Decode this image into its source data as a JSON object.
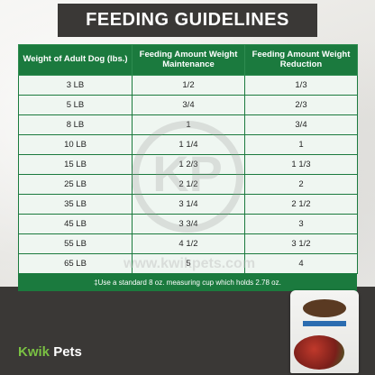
{
  "title": "FEEDING GUIDELINES",
  "table": {
    "headers": [
      "Weight of Adult Dog (lbs.)",
      "Feeding Amount Weight Maintenance",
      "Feeding Amount Weight Reduction"
    ],
    "rows": [
      [
        "3 LB",
        "1/2",
        "1/3"
      ],
      [
        "5 LB",
        "3/4",
        "2/3"
      ],
      [
        "8 LB",
        "1",
        "3/4"
      ],
      [
        "10 LB",
        "1 1/4",
        "1"
      ],
      [
        "15 LB",
        "1 2/3",
        "1 1/3"
      ],
      [
        "25 LB",
        "2 1/2",
        "2"
      ],
      [
        "35 LB",
        "3 1/4",
        "2 1/2"
      ],
      [
        "45 LB",
        "3 3/4",
        "3"
      ],
      [
        "55 LB",
        "4 1/2",
        "3 1/2"
      ],
      [
        "65 LB",
        "5",
        "4"
      ]
    ],
    "note": "‡Use a standard 8 oz. measuring cup which holds 2.78 oz."
  },
  "watermark": {
    "logo_text": "KP",
    "url_text": "www.kwikpets.com"
  },
  "brand": {
    "word1": "Kwik",
    "word2": "Pets"
  },
  "colors": {
    "table_green": "#1b7a3e",
    "dark_band": "#3a3836",
    "brand_green": "#7ac143"
  }
}
